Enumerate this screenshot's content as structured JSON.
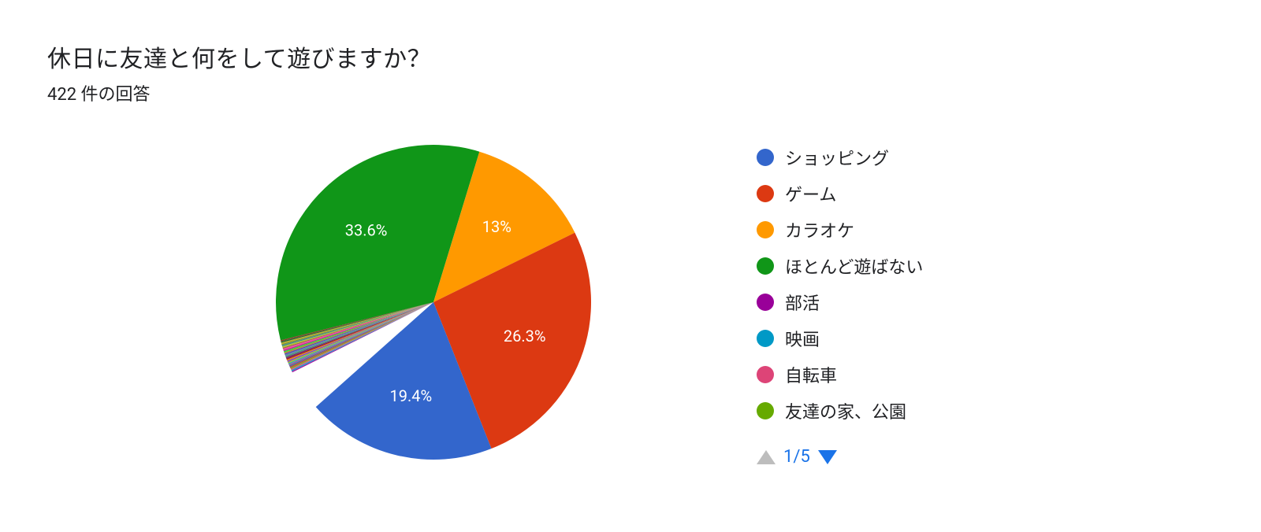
{
  "header": {
    "title": "休日に友達と何をして遊びますか？",
    "response_count_text": "422 件の回答"
  },
  "chart": {
    "type": "pie",
    "slices": [
      {
        "label": "ほとんど遊ばない",
        "value": 33.6,
        "display": "33.6%",
        "color": "#109618"
      },
      {
        "label": "カラオケ",
        "value": 13.0,
        "display": "13%",
        "color": "#ff9900"
      },
      {
        "label": "ゲーム",
        "value": 26.3,
        "display": "26.3%",
        "color": "#dc3912"
      },
      {
        "label": "ショッピング",
        "value": 19.4,
        "display": "19.4%",
        "color": "#3366cc"
      }
    ],
    "other_gap_percent": 7.7,
    "background_color": "#ffffff",
    "start_angle_deg": -104
  },
  "legend": {
    "items": [
      {
        "label": "ショッピング",
        "color": "#3366cc"
      },
      {
        "label": "ゲーム",
        "color": "#dc3912"
      },
      {
        "label": "カラオケ",
        "color": "#ff9900"
      },
      {
        "label": "ほとんど遊ばない",
        "color": "#109618"
      },
      {
        "label": "部活",
        "color": "#990099"
      },
      {
        "label": "映画",
        "color": "#0099c6"
      },
      {
        "label": "自転車",
        "color": "#dd4477"
      },
      {
        "label": "友達の家、公園",
        "color": "#66aa00"
      }
    ]
  },
  "pager": {
    "text": "1/5",
    "prev_color": "#bdbdbd",
    "next_color": "#1a73e8"
  }
}
